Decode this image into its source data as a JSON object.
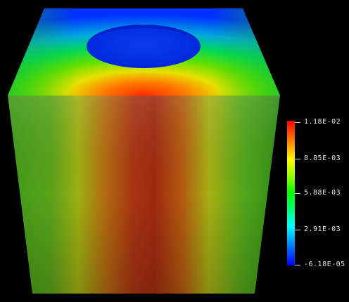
{
  "legend": {
    "ticks": [
      {
        "label": "1.18E-02"
      },
      {
        "label": "8.85E-03"
      },
      {
        "label": "5.88E-03"
      },
      {
        "label": "2.91E-03"
      },
      {
        "label": "-6.18E-05"
      }
    ],
    "colormap": [
      "#ff0000",
      "#ffff00",
      "#00ff00",
      "#00ffff",
      "#0000ff"
    ]
  }
}
